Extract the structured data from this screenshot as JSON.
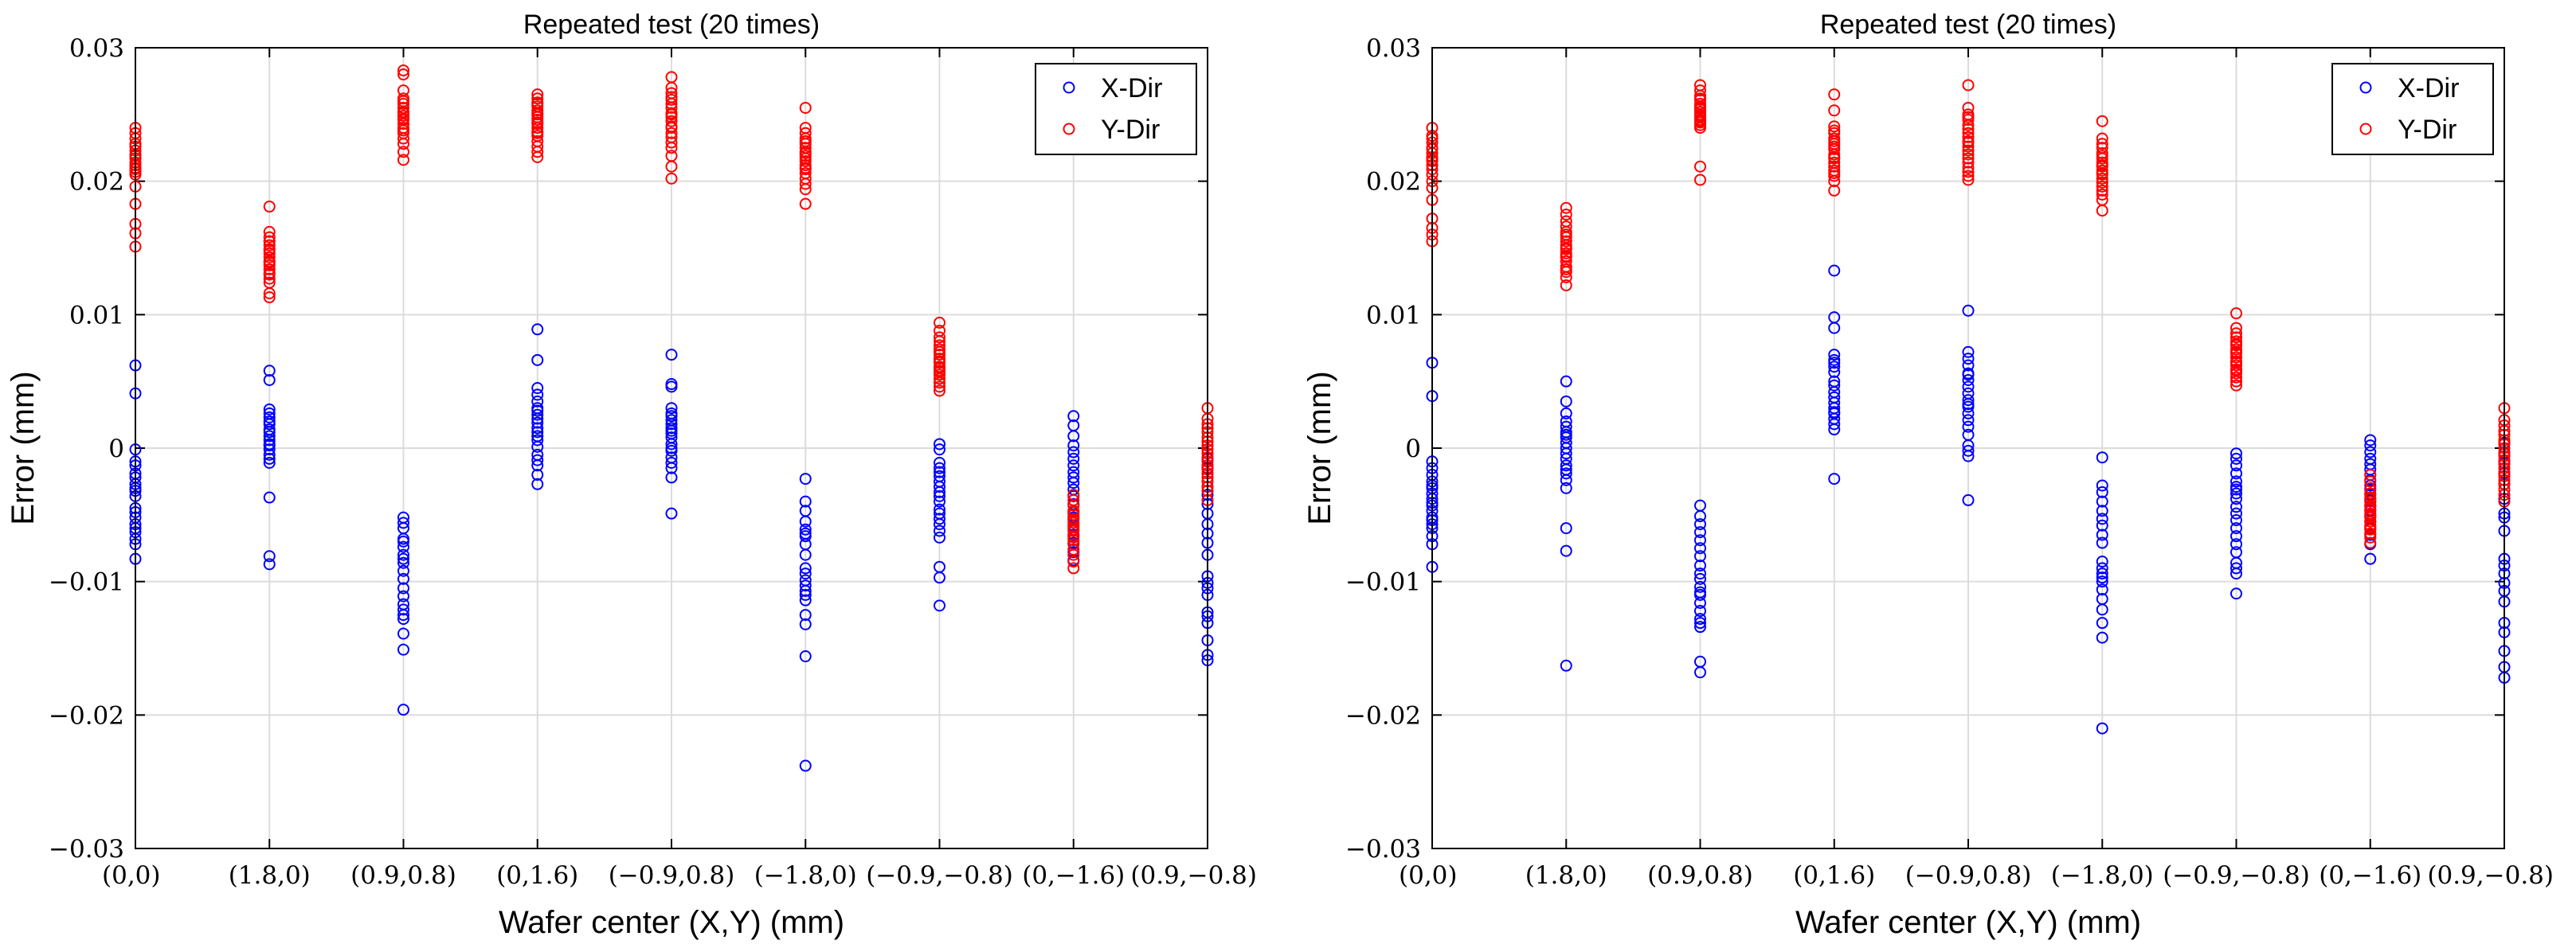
{
  "chart_data": [
    {
      "type": "scatter",
      "title": "Repeated test (20 times)",
      "xlabel": "Wafer center (X,Y) (mm)",
      "ylabel": "Error (mm)",
      "categories": [
        "(0,0)",
        "(1.8,0)",
        "(0.9,0.8)",
        "(0,1.6)",
        "(−0.9,0.8)",
        "(−1.8,0)",
        "(−0.9,−0.8)",
        "(0,−1.6)",
        "(0.9,−0.8)"
      ],
      "ylim": [
        -0.03,
        0.03
      ],
      "yticks": [
        -0.03,
        -0.02,
        -0.01,
        0,
        0.01,
        0.02,
        0.03
      ],
      "ytick_labels": [
        "−0.03",
        "−0.02",
        "−0.01",
        "0",
        "0.01",
        "0.02",
        "0.03"
      ],
      "grid": true,
      "legend_position": "top-right",
      "series": [
        {
          "name": "X-Dir",
          "color": "#0000ff",
          "points": [
            [
              0.0062,
              0.0041,
              -0.0001,
              -0.0013,
              -0.0019,
              -0.0027,
              -0.0032,
              -0.0036,
              -0.0048,
              -0.0052,
              -0.0057,
              -0.0063,
              -0.0068,
              -0.0072,
              -0.0083,
              -0.003,
              -0.0022,
              -0.0045,
              -0.006,
              -0.001
            ],
            [
              0.0058,
              0.0051,
              0.0029,
              0.0023,
              0.0018,
              0.0014,
              0.0009,
              0.0006,
              0.0003,
              -0.0001,
              -0.0005,
              -0.0011,
              -0.0037,
              -0.0081,
              -0.0087,
              0.0012,
              0.0002,
              -0.0008,
              0.002,
              0.0026
            ],
            [
              -0.0052,
              -0.0056,
              -0.0068,
              -0.0074,
              -0.008,
              -0.0086,
              -0.0092,
              -0.0098,
              -0.0111,
              -0.0117,
              -0.0121,
              -0.0125,
              -0.0139,
              -0.0151,
              -0.0196,
              -0.007,
              -0.0083,
              -0.0105,
              -0.0128,
              -0.006
            ],
            [
              0.0089,
              0.0066,
              0.0045,
              0.004,
              0.0035,
              0.003,
              0.0025,
              0.0022,
              0.0019,
              0.0012,
              0.0006,
              0.0001,
              -0.0005,
              -0.0013,
              -0.002,
              -0.0027,
              0.0015,
              0.0028,
              0.0009,
              -0.0009
            ],
            [
              0.007,
              0.0048,
              0.0046,
              0.003,
              0.0026,
              0.0021,
              0.0018,
              0.0015,
              0.0011,
              0.0008,
              0.0003,
              -0.0002,
              -0.0007,
              -0.0015,
              -0.0022,
              -0.0049,
              0.0013,
              0.0024,
              0.0,
              -0.0011
            ],
            [
              -0.0023,
              -0.004,
              -0.0047,
              -0.0055,
              -0.0061,
              -0.0066,
              -0.0072,
              -0.008,
              -0.0094,
              -0.0099,
              -0.0103,
              -0.0107,
              -0.0114,
              -0.0125,
              -0.0132,
              -0.0156,
              -0.0238,
              -0.009,
              -0.011,
              -0.0064
            ],
            [
              0.0003,
              -0.0001,
              -0.0011,
              -0.0015,
              -0.0021,
              -0.0025,
              -0.0029,
              -0.0033,
              -0.004,
              -0.0046,
              -0.0049,
              -0.0053,
              -0.0062,
              -0.0067,
              -0.0089,
              -0.0097,
              -0.0118,
              -0.0036,
              -0.0057,
              -0.0018
            ],
            [
              0.0024,
              0.0017,
              0.0009,
              0.0002,
              -0.0003,
              -0.0008,
              -0.0013,
              -0.0018,
              -0.0022,
              -0.0026,
              -0.0031,
              -0.0036,
              -0.0042,
              -0.0048,
              -0.0052,
              -0.0058,
              -0.0065,
              -0.0071,
              -0.0078,
              -0.0084
            ],
            [
              -0.0008,
              -0.0015,
              -0.0029,
              -0.0035,
              -0.0042,
              -0.0049,
              -0.0057,
              -0.0064,
              -0.0071,
              -0.008,
              -0.0096,
              -0.0101,
              -0.011,
              -0.0123,
              -0.0126,
              -0.0131,
              -0.0144,
              -0.0155,
              -0.0159,
              -0.0105
            ]
          ]
        },
        {
          "name": "Y-Dir",
          "color": "#ff0000",
          "points": [
            [
              0.024,
              0.0236,
              0.0228,
              0.0223,
              0.022,
              0.0217,
              0.0214,
              0.0212,
              0.021,
              0.0207,
              0.0205,
              0.0196,
              0.0183,
              0.0168,
              0.0161,
              0.0151,
              0.0226,
              0.0219,
              0.0209,
              0.0232
            ],
            [
              0.0181,
              0.0162,
              0.0158,
              0.0155,
              0.0152,
              0.0149,
              0.0146,
              0.0143,
              0.014,
              0.0137,
              0.0134,
              0.013,
              0.0127,
              0.0124,
              0.0116,
              0.0113,
              0.0148,
              0.0139,
              0.0131,
              0.0155
            ],
            [
              0.0283,
              0.028,
              0.0268,
              0.0262,
              0.0258,
              0.0255,
              0.0252,
              0.0249,
              0.0246,
              0.0243,
              0.024,
              0.0236,
              0.0232,
              0.0228,
              0.0222,
              0.0216,
              0.0251,
              0.0247,
              0.0238,
              0.026
            ],
            [
              0.0265,
              0.0262,
              0.0259,
              0.0256,
              0.0253,
              0.025,
              0.0248,
              0.0246,
              0.0243,
              0.024,
              0.0237,
              0.0234,
              0.023,
              0.0226,
              0.0222,
              0.0218,
              0.0251,
              0.0244,
              0.0236,
              0.0258
            ],
            [
              0.0278,
              0.027,
              0.0266,
              0.0261,
              0.0258,
              0.0255,
              0.0251,
              0.0248,
              0.0245,
              0.0241,
              0.0236,
              0.0233,
              0.0229,
              0.0225,
              0.0219,
              0.0211,
              0.0202,
              0.025,
              0.024,
              0.0263
            ],
            [
              0.0255,
              0.024,
              0.0236,
              0.0232,
              0.0228,
              0.0225,
              0.0222,
              0.0219,
              0.0215,
              0.0212,
              0.0209,
              0.0206,
              0.0202,
              0.0198,
              0.0194,
              0.0183,
              0.0221,
              0.0217,
              0.021,
              0.023
            ],
            [
              0.0094,
              0.0088,
              0.0083,
              0.008,
              0.0077,
              0.0074,
              0.007,
              0.0067,
              0.0064,
              0.0061,
              0.0058,
              0.0055,
              0.0052,
              0.0049,
              0.0046,
              0.0043,
              0.0065,
              0.006,
              0.0072,
              0.0057
            ],
            [
              -0.0035,
              -0.0039,
              -0.0043,
              -0.0047,
              -0.005,
              -0.0053,
              -0.0056,
              -0.0059,
              -0.0062,
              -0.0066,
              -0.0069,
              -0.0072,
              -0.0076,
              -0.008,
              -0.0085,
              -0.009,
              -0.0054,
              -0.0061,
              -0.0048,
              -0.0067
            ],
            [
              0.003,
              0.0022,
              0.0018,
              0.0015,
              0.0012,
              0.0008,
              0.0005,
              0.0002,
              -0.0001,
              -0.0004,
              -0.0007,
              -0.001,
              -0.0013,
              -0.0016,
              -0.0019,
              -0.0022,
              -0.0025,
              -0.0029,
              -0.0032,
              -0.0039
            ]
          ]
        }
      ]
    },
    {
      "type": "scatter",
      "title": "Repeated test (20 times)",
      "xlabel": "Wafer center (X,Y) (mm)",
      "ylabel": "Error (mm)",
      "categories": [
        "(0,0)",
        "(1.8,0)",
        "(0.9,0.8)",
        "(0,1.6)",
        "(−0.9,0.8)",
        "(−1.8,0)",
        "(−0.9,−0.8)",
        "(0,−1.6)",
        "(0.9,−0.8)"
      ],
      "ylim": [
        -0.03,
        0.03
      ],
      "yticks": [
        -0.03,
        -0.02,
        -0.01,
        0,
        0.01,
        0.02,
        0.03
      ],
      "ytick_labels": [
        "−0.03",
        "−0.02",
        "−0.01",
        "0",
        "0.01",
        "0.02",
        "0.03"
      ],
      "grid": true,
      "legend_position": "top-right",
      "series": [
        {
          "name": "X-Dir",
          "color": "#0000ff",
          "points": [
            [
              0.0064,
              0.0039,
              -0.001,
              -0.0015,
              -0.002,
              -0.0025,
              -0.003,
              -0.0034,
              -0.0038,
              -0.0043,
              -0.0047,
              -0.0052,
              -0.0057,
              -0.006,
              -0.0066,
              -0.0072,
              -0.0089,
              -0.0028,
              -0.0041,
              -0.0054
            ],
            [
              0.005,
              0.0035,
              0.0026,
              0.002,
              0.0016,
              0.0012,
              0.0008,
              0.0004,
              0.0,
              -0.0004,
              -0.0008,
              -0.0013,
              -0.0019,
              -0.0024,
              -0.003,
              -0.006,
              -0.0077,
              -0.0163,
              0.001,
              -0.0016
            ],
            [
              -0.0043,
              -0.0051,
              -0.0057,
              -0.0063,
              -0.0069,
              -0.0075,
              -0.0081,
              -0.0088,
              -0.0094,
              -0.0104,
              -0.011,
              -0.0116,
              -0.0122,
              -0.0128,
              -0.0134,
              -0.016,
              -0.0168,
              -0.0108,
              -0.0098,
              -0.0131
            ],
            [
              0.0133,
              0.0098,
              0.009,
              0.007,
              0.0066,
              0.0061,
              0.0057,
              0.005,
              0.0042,
              0.0034,
              0.003,
              0.0026,
              0.0022,
              0.0018,
              0.0014,
              -0.0023,
              0.0064,
              0.0047,
              0.0038,
              0.0027
            ],
            [
              0.0103,
              0.0072,
              0.0067,
              0.0062,
              0.0056,
              0.0051,
              0.0046,
              0.0041,
              0.0036,
              0.0031,
              0.0026,
              0.0021,
              0.0016,
              0.001,
              0.0002,
              -0.0002,
              -0.0006,
              -0.0039,
              0.0033,
              0.0055
            ],
            [
              -0.0007,
              -0.0028,
              -0.0033,
              -0.004,
              -0.0047,
              -0.0053,
              -0.0058,
              -0.0065,
              -0.0071,
              -0.0085,
              -0.009,
              -0.0094,
              -0.01,
              -0.0106,
              -0.0113,
              -0.0121,
              -0.0131,
              -0.0142,
              -0.021,
              -0.0097
            ],
            [
              -0.0004,
              -0.0008,
              -0.0013,
              -0.0019,
              -0.0025,
              -0.0029,
              -0.0034,
              -0.0038,
              -0.0044,
              -0.0049,
              -0.0054,
              -0.006,
              -0.0066,
              -0.0072,
              -0.0078,
              -0.0086,
              -0.009,
              -0.0094,
              -0.0109,
              -0.0031
            ],
            [
              0.0006,
              0.0002,
              -0.0003,
              -0.0008,
              -0.0012,
              -0.0016,
              -0.002,
              -0.0024,
              -0.0028,
              -0.0031,
              -0.0035,
              -0.0039,
              -0.0043,
              -0.0047,
              -0.0051,
              -0.0055,
              -0.006,
              -0.0065,
              -0.0072,
              -0.0083
            ],
            [
              0.0004,
              -0.0004,
              -0.0011,
              -0.0019,
              -0.0027,
              -0.0038,
              -0.0049,
              -0.0052,
              -0.0062,
              -0.0083,
              -0.0088,
              -0.0094,
              -0.0101,
              -0.0107,
              -0.0131,
              -0.0138,
              -0.0152,
              -0.0164,
              -0.0172,
              -0.0115
            ]
          ]
        },
        {
          "name": "Y-Dir",
          "color": "#ff0000",
          "points": [
            [
              0.024,
              0.0234,
              0.0229,
              0.0225,
              0.0221,
              0.0218,
              0.0215,
              0.0212,
              0.0209,
              0.0205,
              0.02,
              0.0186,
              0.0172,
              0.0165,
              0.016,
              0.0155,
              0.0224,
              0.0216,
              0.0195,
              0.0232
            ],
            [
              0.018,
              0.0175,
              0.017,
              0.0166,
              0.0162,
              0.0158,
              0.0155,
              0.0152,
              0.0149,
              0.0146,
              0.0143,
              0.014,
              0.0136,
              0.0132,
              0.0128,
              0.0122,
              0.015,
              0.0144,
              0.0134,
              0.016
            ],
            [
              0.0272,
              0.0268,
              0.0264,
              0.0261,
              0.0258,
              0.0256,
              0.0254,
              0.0252,
              0.025,
              0.0248,
              0.0246,
              0.0244,
              0.0242,
              0.024,
              0.0211,
              0.0201,
              0.0255,
              0.0249,
              0.0245,
              0.0262
            ],
            [
              0.0265,
              0.0253,
              0.0241,
              0.0236,
              0.0232,
              0.0228,
              0.0224,
              0.022,
              0.0217,
              0.0214,
              0.0211,
              0.0208,
              0.0204,
              0.02,
              0.0193,
              0.023,
              0.0226,
              0.0218,
              0.0206,
              0.0238
            ],
            [
              0.0272,
              0.0255,
              0.025,
              0.0246,
              0.0242,
              0.0239,
              0.0236,
              0.0233,
              0.023,
              0.0226,
              0.0223,
              0.022,
              0.0217,
              0.0214,
              0.021,
              0.0207,
              0.0204,
              0.0201,
              0.0248,
              0.0229
            ],
            [
              0.0245,
              0.0232,
              0.0225,
              0.0221,
              0.0217,
              0.0214,
              0.0211,
              0.0208,
              0.0205,
              0.0202,
              0.0199,
              0.0196,
              0.0193,
              0.019,
              0.0186,
              0.0178,
              0.0219,
              0.0212,
              0.0206,
              0.0228
            ],
            [
              0.0101,
              0.009,
              0.0086,
              0.0083,
              0.008,
              0.0077,
              0.0074,
              0.0071,
              0.0068,
              0.0065,
              0.0062,
              0.0059,
              0.0056,
              0.0053,
              0.005,
              0.0047,
              0.0072,
              0.0064,
              0.0078,
              0.0058
            ],
            [
              -0.002,
              -0.0025,
              -0.003,
              -0.0034,
              -0.0037,
              -0.004,
              -0.0043,
              -0.0046,
              -0.0049,
              -0.0052,
              -0.0055,
              -0.0058,
              -0.0061,
              -0.0064,
              -0.0067,
              -0.0071,
              -0.0044,
              -0.005,
              -0.0038,
              -0.0059
            ],
            [
              0.003,
              0.0021,
              0.0017,
              0.0013,
              0.001,
              0.0006,
              0.0003,
              0.0,
              -0.0003,
              -0.0006,
              -0.0009,
              -0.0012,
              -0.0015,
              -0.0018,
              -0.0021,
              -0.0024,
              -0.0027,
              -0.0031,
              -0.0035,
              -0.004
            ]
          ]
        }
      ]
    }
  ]
}
